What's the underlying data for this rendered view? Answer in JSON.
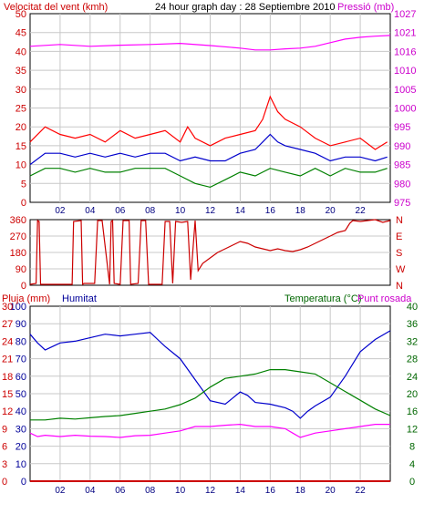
{
  "header": {
    "wind_label": "Velocitat del vent (kmh)",
    "title": "24 hour graph day : 28 Septiembre 2010",
    "pressure_label": "Pressió (mb)"
  },
  "lower_header": {
    "rain_label": "Pluja (mm)",
    "humidity_label": "Humitat",
    "temperature_label": "Temperatura (°C)",
    "dewpoint_label": "Punt rosada"
  },
  "colors": {
    "wind_gust": "#ff0000",
    "wind_avg": "#0000cc",
    "wind_min": "#008000",
    "pressure": "#ff00ff",
    "direction": "#cc0000",
    "humidity": "#0000cc",
    "temperature": "#008000",
    "dewpoint": "#ff00ff",
    "rain": "#cc0000",
    "left_axis_red": "#cc0000",
    "right_axis_magenta": "#cc00cc",
    "humidity_axis_blue": "#000099",
    "temperature_axis_green": "#006600",
    "grid": "#c8c8c8"
  },
  "chart_data": [
    {
      "id": "wind_pressure",
      "type": "line",
      "x_tick_labels": [
        "02",
        "04",
        "06",
        "08",
        "10",
        "12",
        "14",
        "16",
        "18",
        "20",
        "22"
      ],
      "x_tick_hours": [
        2,
        4,
        6,
        8,
        10,
        12,
        14,
        16,
        18,
        20,
        22
      ],
      "x_range_hours": [
        0,
        24
      ],
      "ylim_left": [
        0,
        50
      ],
      "y_left_ticks": [
        0,
        5,
        10,
        15,
        20,
        25,
        30,
        35,
        40,
        45,
        50
      ],
      "ylim_right": [
        975,
        1027
      ],
      "y_right_ticks": [
        975,
        980,
        985,
        990,
        995,
        1000,
        1005,
        1010,
        1016,
        1021,
        1027
      ],
      "grid": true,
      "series": [
        {
          "key": "gust",
          "axis": "left",
          "x": [
            0,
            1,
            2,
            3,
            4,
            5,
            6,
            7,
            8,
            9,
            10,
            10.5,
            11,
            12,
            13,
            14,
            15,
            15.5,
            16,
            16.5,
            17,
            18,
            19,
            20,
            21,
            22,
            23,
            23.8
          ],
          "values": [
            16,
            20,
            18,
            17,
            18,
            16,
            19,
            17,
            18,
            19,
            16,
            20,
            17,
            15,
            17,
            18,
            19,
            22,
            28,
            24,
            22,
            20,
            17,
            15,
            16,
            17,
            14,
            16
          ]
        },
        {
          "key": "average",
          "axis": "left",
          "x": [
            0,
            1,
            2,
            3,
            4,
            5,
            6,
            7,
            8,
            9,
            10,
            11,
            12,
            13,
            14,
            15,
            15.5,
            16,
            16.5,
            17,
            18,
            19,
            20,
            21,
            22,
            23,
            23.8
          ],
          "values": [
            10,
            13,
            13,
            12,
            13,
            12,
            13,
            12,
            13,
            13,
            11,
            12,
            11,
            11,
            13,
            14,
            16,
            18,
            16,
            15,
            14,
            13,
            11,
            12,
            12,
            11,
            12
          ]
        },
        {
          "key": "minimum",
          "axis": "left",
          "x": [
            0,
            1,
            2,
            3,
            4,
            5,
            6,
            7,
            8,
            9,
            10,
            11,
            12,
            13,
            14,
            15,
            16,
            17,
            18,
            19,
            20,
            21,
            22,
            23,
            23.8
          ],
          "values": [
            7,
            9,
            9,
            8,
            9,
            8,
            8,
            9,
            9,
            9,
            7,
            5,
            4,
            6,
            8,
            7,
            9,
            8,
            7,
            9,
            7,
            9,
            8,
            8,
            9
          ]
        },
        {
          "key": "pressure",
          "axis": "right",
          "x": [
            0,
            2,
            4,
            6,
            8,
            10,
            12,
            14,
            15,
            16,
            17,
            18,
            19,
            20,
            21,
            22,
            23,
            24
          ],
          "values": [
            1018,
            1018.5,
            1018,
            1018.3,
            1018.5,
            1018.8,
            1018.2,
            1017.5,
            1017,
            1017,
            1017.3,
            1017.5,
            1018,
            1019,
            1020,
            1020.5,
            1020.8,
            1021
          ]
        }
      ]
    },
    {
      "id": "wind_direction",
      "type": "line",
      "x_range_hours": [
        0,
        24
      ],
      "ylim": [
        0,
        360
      ],
      "y_ticks": [
        0,
        90,
        180,
        270,
        360
      ],
      "right_labels": [
        "N",
        "W",
        "S",
        "E",
        "N"
      ],
      "grid": true,
      "series": [
        {
          "key": "direction",
          "x": [
            0,
            0.4,
            0.5,
            0.6,
            0.7,
            2.8,
            2.9,
            3.4,
            3.5,
            3.6,
            4.3,
            4.5,
            4.8,
            5.3,
            5.4,
            5.5,
            5.6,
            6.0,
            6.2,
            6.6,
            6.7,
            7.2,
            7.4,
            7.7,
            7.9,
            8.8,
            9.0,
            9.3,
            9.5,
            9.7,
            10.1,
            10.5,
            10.7,
            11.0,
            11.2,
            11.5,
            12.0,
            12.5,
            13.0,
            13.5,
            14.0,
            14.5,
            15.0,
            15.5,
            16.0,
            16.5,
            17.0,
            17.5,
            18.0,
            18.5,
            19.0,
            19.5,
            20.0,
            20.5,
            21.0,
            21.3,
            21.5,
            22.0,
            22.5,
            23.0,
            23.5,
            24.0
          ],
          "values": [
            5,
            10,
            355,
            350,
            5,
            5,
            350,
            355,
            5,
            10,
            10,
            355,
            355,
            5,
            350,
            355,
            10,
            5,
            355,
            355,
            5,
            10,
            355,
            355,
            5,
            5,
            350,
            350,
            10,
            350,
            345,
            350,
            30,
            355,
            80,
            120,
            150,
            180,
            200,
            220,
            240,
            230,
            210,
            200,
            190,
            200,
            190,
            185,
            195,
            210,
            230,
            250,
            270,
            290,
            300,
            340,
            355,
            350,
            355,
            360,
            345,
            355
          ]
        }
      ]
    },
    {
      "id": "humidity_temperature",
      "type": "line",
      "x_tick_labels": [
        "02",
        "04",
        "06",
        "08",
        "10",
        "12",
        "14",
        "16",
        "18",
        "20",
        "22"
      ],
      "x_tick_hours": [
        2,
        4,
        6,
        8,
        10,
        12,
        14,
        16,
        18,
        20,
        22
      ],
      "x_range_hours": [
        0,
        24
      ],
      "y_left_humidity_ticks": [
        0,
        10,
        20,
        30,
        40,
        50,
        60,
        70,
        80,
        90,
        100
      ],
      "ylim_humidity": [
        0,
        100
      ],
      "y_left_rain_ticks": [
        0,
        3,
        6,
        9,
        12,
        15,
        18,
        21,
        24,
        27,
        30
      ],
      "ylim_rain": [
        0,
        30
      ],
      "y_right_ticks": [
        0,
        4,
        8,
        12,
        16,
        20,
        24,
        28,
        32,
        36,
        40
      ],
      "ylim_temperature": [
        0,
        40
      ],
      "grid": true,
      "series": [
        {
          "key": "humidity",
          "axis": "humidity",
          "x": [
            0,
            0.5,
            1,
            1.5,
            2,
            3,
            4,
            5,
            6,
            7,
            8,
            8.5,
            9,
            10,
            10.5,
            11,
            11.5,
            12,
            13,
            14,
            14.5,
            15,
            16,
            17,
            17.5,
            18,
            18.5,
            19,
            20,
            21,
            22,
            23,
            24
          ],
          "values": [
            84,
            79,
            75,
            77,
            79,
            80,
            82,
            84,
            83,
            84,
            85,
            81,
            77,
            70,
            64,
            58,
            52,
            46,
            44,
            51,
            49,
            45,
            44,
            42,
            40,
            36,
            40,
            43,
            48,
            60,
            74,
            81,
            86
          ]
        },
        {
          "key": "temperature",
          "axis": "temperature",
          "x": [
            0,
            1,
            2,
            3,
            4,
            5,
            6,
            7,
            8,
            9,
            10,
            11,
            12,
            13,
            14,
            15,
            16,
            17,
            18,
            19,
            20,
            21,
            22,
            23,
            24
          ],
          "values": [
            14,
            14,
            14.4,
            14.2,
            14.5,
            14.8,
            15,
            15.5,
            16,
            16.5,
            17.5,
            19,
            21.5,
            23.5,
            24,
            24.5,
            25.5,
            25.5,
            25,
            24.5,
            22.5,
            20.5,
            18.5,
            16.5,
            15
          ]
        },
        {
          "key": "dewpoint",
          "axis": "temperature",
          "x": [
            0,
            0.5,
            1,
            2,
            3,
            4,
            5,
            6,
            7,
            8,
            9,
            10,
            11,
            12,
            13,
            14,
            15,
            16,
            17,
            17.5,
            18,
            18.5,
            19,
            20,
            21,
            22,
            23,
            24
          ],
          "values": [
            11,
            10.2,
            10.5,
            10.2,
            10.5,
            10.3,
            10.2,
            10,
            10.4,
            10.5,
            11,
            11.5,
            12.5,
            12.5,
            12.8,
            13,
            12.5,
            12.5,
            12,
            11,
            10,
            10.5,
            11,
            11.5,
            12,
            12.5,
            13,
            13
          ]
        },
        {
          "key": "rain",
          "axis": "rain",
          "x": [
            0,
            24
          ],
          "values": [
            0,
            0
          ]
        }
      ]
    }
  ]
}
